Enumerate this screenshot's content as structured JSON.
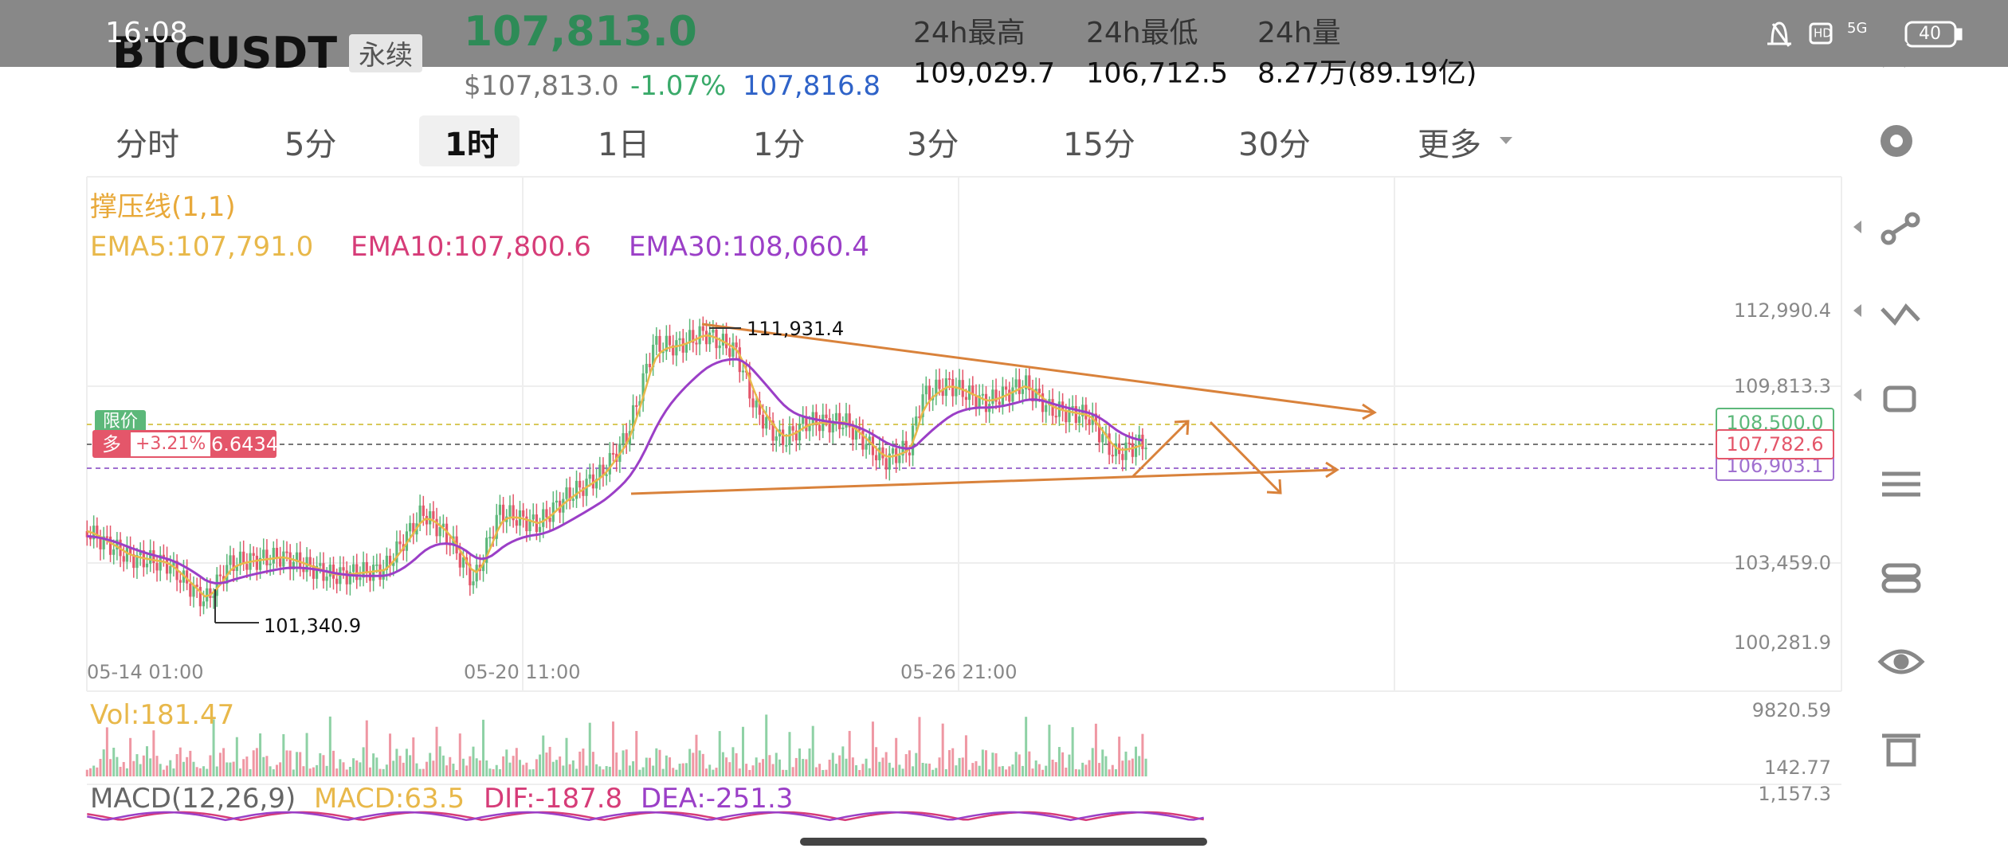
{
  "status_bar": {
    "time": "16:08",
    "hd": "HD",
    "network": "5G",
    "battery": "40"
  },
  "header": {
    "symbol": "BTCUSDT",
    "contract": "永续",
    "last_price": "107,813.0",
    "usd_price": "$107,813.0",
    "change": "-1.07%",
    "mark_price": "107,816.8",
    "stats": [
      {
        "label": "24h最高",
        "value": "109,029.7"
      },
      {
        "label": "24h最低",
        "value": "106,712.5"
      },
      {
        "label": "24h量",
        "value": "8.27万(89.19亿)"
      }
    ]
  },
  "tabs": [
    "分时",
    "5分",
    "1时",
    "1日",
    "1分",
    "3分",
    "15分",
    "30分",
    "更多"
  ],
  "indicators": {
    "main": "撑压线(1,1)",
    "ema5": "EMA5:107,791.0",
    "ema10": "EMA10:107,800.6",
    "ema30": "EMA30:108,060.4"
  },
  "price_axis": [
    "112,990.4",
    "109,813.3",
    "103,459.0",
    "100,281.9"
  ],
  "price_tags": [
    "108,500.0",
    "107,782.6",
    "106,903.1"
  ],
  "time_axis": [
    "05-14 01:00",
    "05-20 11:00",
    "05-26 21:00"
  ],
  "annotations": [
    "111,931.4",
    "101,340.9"
  ],
  "order": {
    "type": "限价",
    "side": "多",
    "pnl_percent": "+3.21%",
    "pnl": "6.6434"
  },
  "volume": {
    "label": "Vol:181.47",
    "axis": [
      "9820.59",
      "142.77"
    ]
  },
  "macd": {
    "label": "MACD(12,26,9)",
    "macd": "MACD:63.5",
    "dif": "DIF:-187.8",
    "dea": "DEA:-251.3",
    "axis": "1,157.3"
  }
}
